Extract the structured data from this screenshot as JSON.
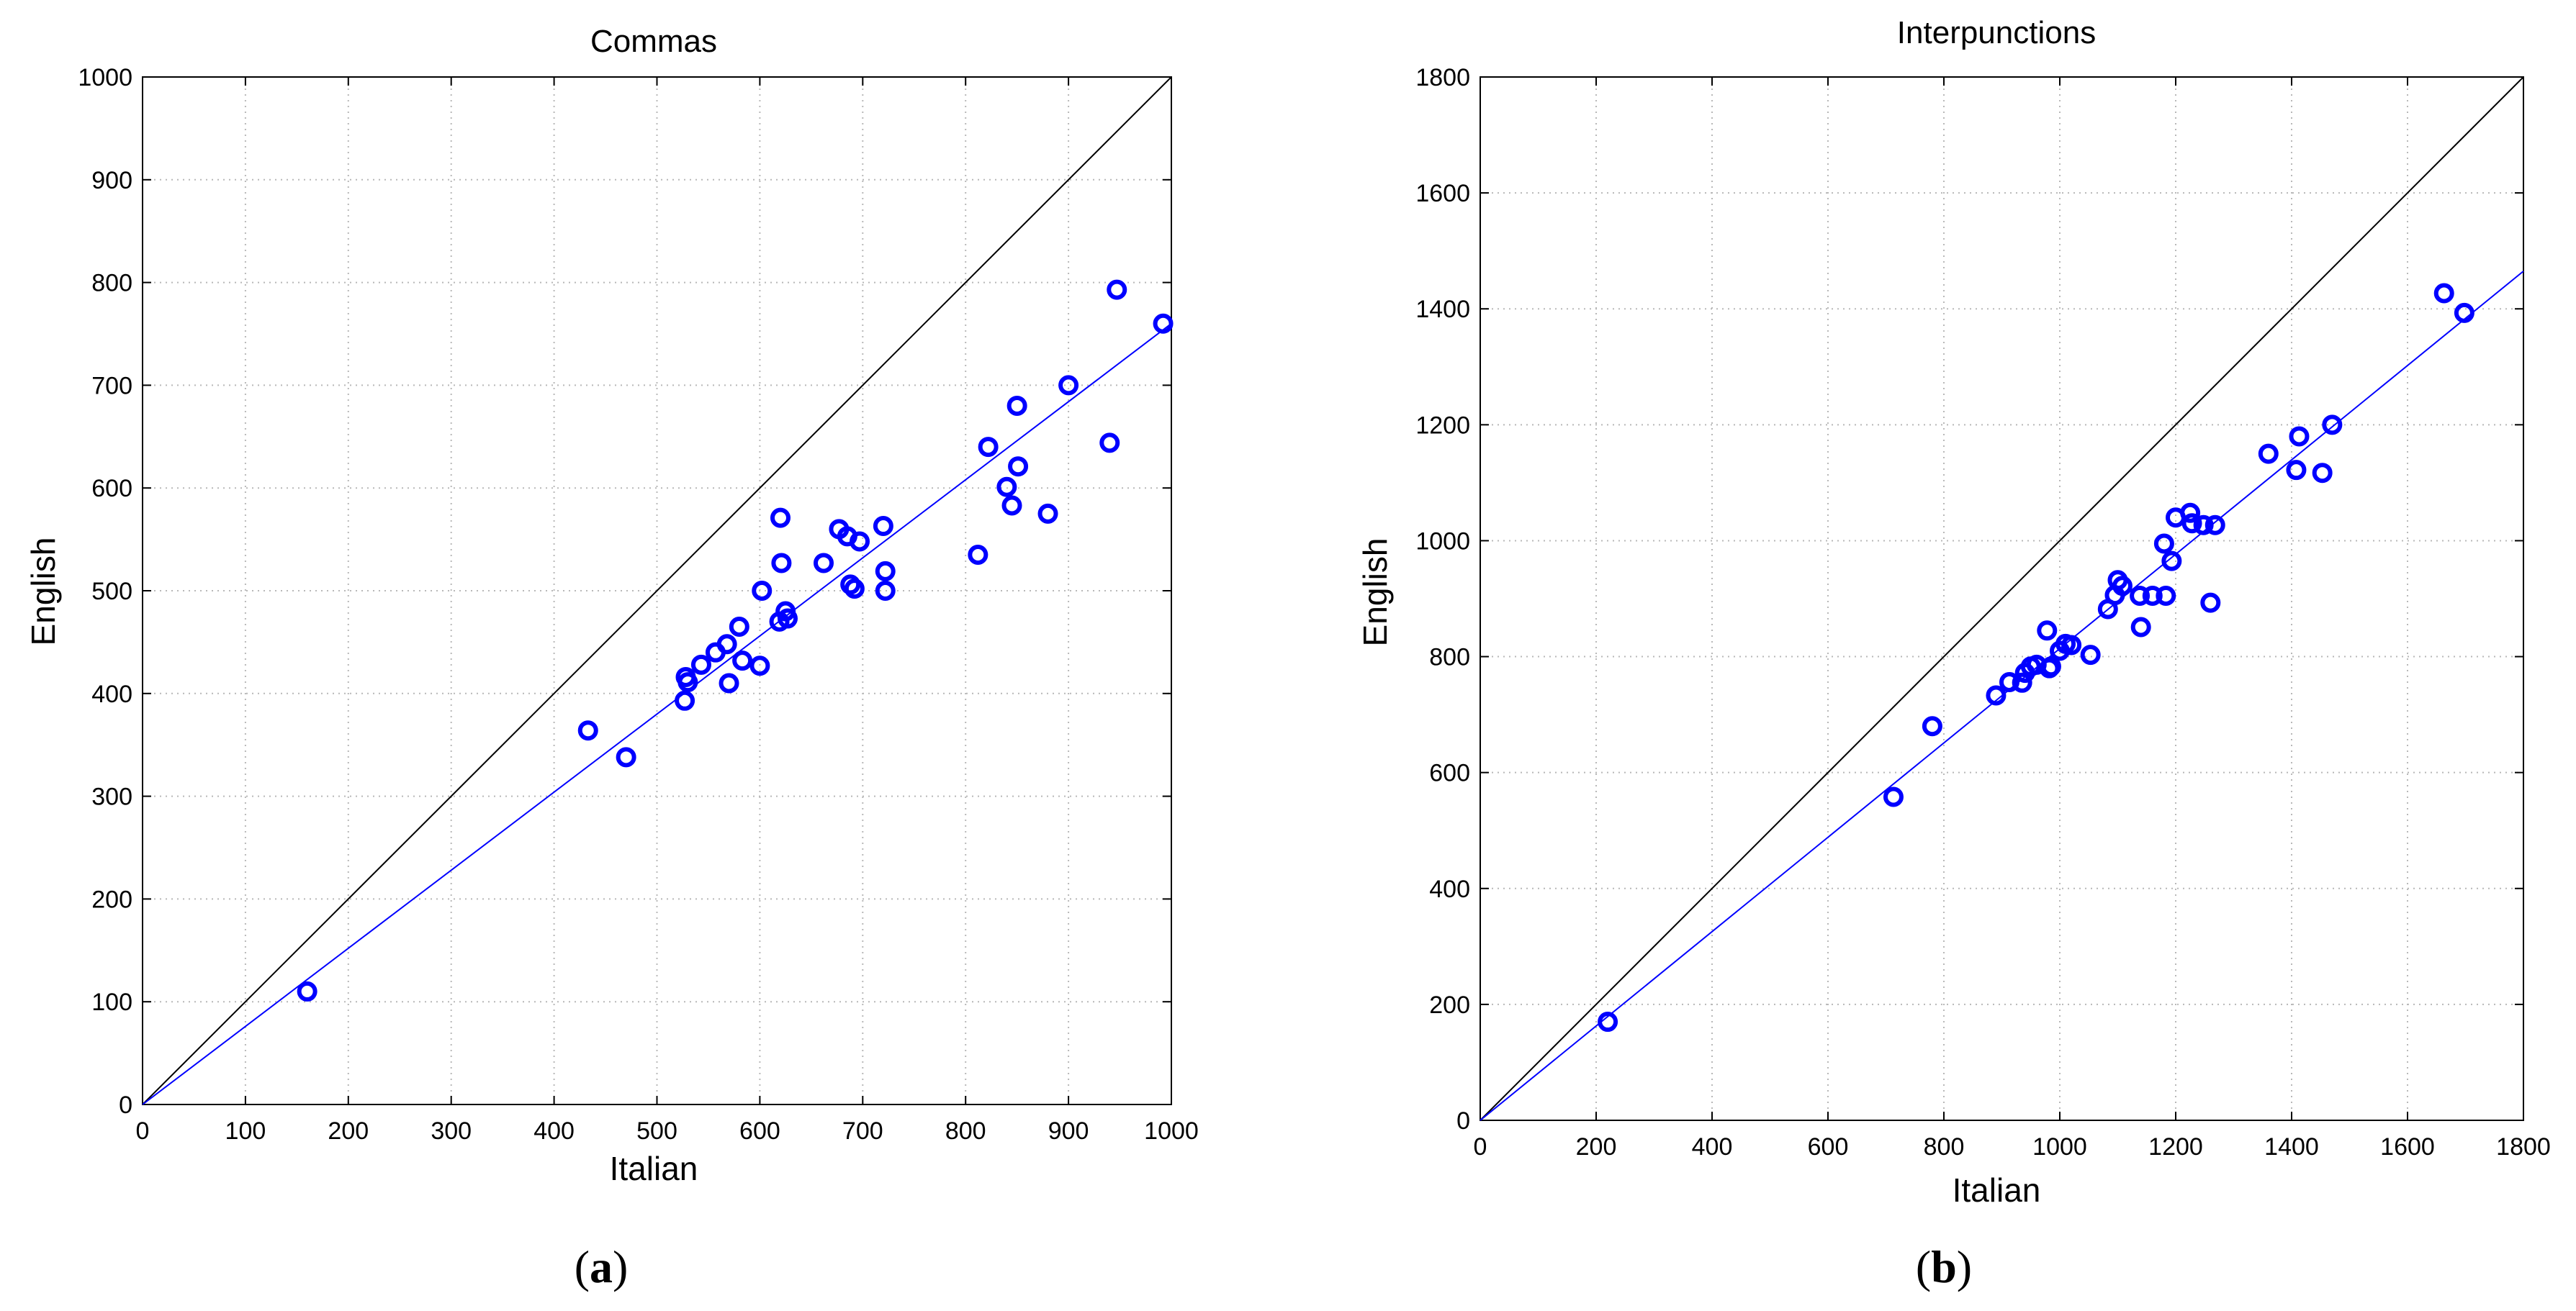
{
  "chart_data": [
    {
      "type": "scatter",
      "title": "Commas",
      "xlabel": "Italian",
      "ylabel": "English",
      "xlim": [
        0,
        1000
      ],
      "ylim": [
        0,
        1000
      ],
      "xticks": [
        0,
        100,
        200,
        300,
        400,
        500,
        600,
        700,
        800,
        900,
        1000
      ],
      "yticks": [
        0,
        100,
        200,
        300,
        400,
        500,
        600,
        700,
        800,
        900,
        1000
      ],
      "grid": true,
      "caption": [
        "(",
        "a",
        ")"
      ],
      "marker_color": "#0000ff",
      "identity_line_color": "#000000",
      "fit_line_color": "#0000ff",
      "identity_line": {
        "x": [
          0,
          1000
        ],
        "y": [
          0,
          1000
        ]
      },
      "fit_line": {
        "x": [
          0,
          1000
        ],
        "y": [
          0,
          760
        ]
      },
      "points": [
        {
          "x": 160,
          "y": 110
        },
        {
          "x": 433,
          "y": 364
        },
        {
          "x": 470,
          "y": 338
        },
        {
          "x": 527,
          "y": 393
        },
        {
          "x": 528,
          "y": 416
        },
        {
          "x": 530,
          "y": 411
        },
        {
          "x": 543,
          "y": 428
        },
        {
          "x": 557,
          "y": 440
        },
        {
          "x": 568,
          "y": 448
        },
        {
          "x": 570,
          "y": 410
        },
        {
          "x": 580,
          "y": 465
        },
        {
          "x": 583,
          "y": 432
        },
        {
          "x": 600,
          "y": 427
        },
        {
          "x": 602,
          "y": 500
        },
        {
          "x": 619,
          "y": 470
        },
        {
          "x": 620,
          "y": 571
        },
        {
          "x": 621,
          "y": 527
        },
        {
          "x": 625,
          "y": 480
        },
        {
          "x": 627,
          "y": 473
        },
        {
          "x": 662,
          "y": 527
        },
        {
          "x": 677,
          "y": 560
        },
        {
          "x": 685,
          "y": 553
        },
        {
          "x": 688,
          "y": 506
        },
        {
          "x": 692,
          "y": 502
        },
        {
          "x": 697,
          "y": 548
        },
        {
          "x": 720,
          "y": 563
        },
        {
          "x": 722,
          "y": 519
        },
        {
          "x": 722,
          "y": 500
        },
        {
          "x": 812,
          "y": 535
        },
        {
          "x": 822,
          "y": 640
        },
        {
          "x": 840,
          "y": 601
        },
        {
          "x": 845,
          "y": 583
        },
        {
          "x": 850,
          "y": 680
        },
        {
          "x": 851,
          "y": 621
        },
        {
          "x": 880,
          "y": 575
        },
        {
          "x": 900,
          "y": 700
        },
        {
          "x": 940,
          "y": 644
        },
        {
          "x": 947,
          "y": 793
        },
        {
          "x": 992,
          "y": 760
        }
      ]
    },
    {
      "type": "scatter",
      "title": "Interpunctions",
      "xlabel": "Italian",
      "ylabel": "English",
      "xlim": [
        0,
        1800
      ],
      "ylim": [
        0,
        1800
      ],
      "xticks": [
        0,
        200,
        400,
        600,
        800,
        1000,
        1200,
        1400,
        1600,
        1800
      ],
      "yticks": [
        0,
        200,
        400,
        600,
        800,
        1000,
        1200,
        1400,
        1600,
        1800
      ],
      "grid": true,
      "caption": [
        "(",
        "b",
        ")"
      ],
      "marker_color": "#0000ff",
      "identity_line_color": "#000000",
      "fit_line_color": "#0000ff",
      "identity_line": {
        "x": [
          0,
          1800
        ],
        "y": [
          0,
          1800
        ]
      },
      "fit_line": {
        "x": [
          0,
          1800
        ],
        "y": [
          0,
          1465
        ]
      },
      "points": [
        {
          "x": 220,
          "y": 170
        },
        {
          "x": 713,
          "y": 558
        },
        {
          "x": 780,
          "y": 680
        },
        {
          "x": 890,
          "y": 733
        },
        {
          "x": 913,
          "y": 756
        },
        {
          "x": 935,
          "y": 755
        },
        {
          "x": 940,
          "y": 772
        },
        {
          "x": 950,
          "y": 783
        },
        {
          "x": 960,
          "y": 786
        },
        {
          "x": 978,
          "y": 845
        },
        {
          "x": 982,
          "y": 780
        },
        {
          "x": 985,
          "y": 783
        },
        {
          "x": 1000,
          "y": 810
        },
        {
          "x": 1010,
          "y": 822
        },
        {
          "x": 1020,
          "y": 820
        },
        {
          "x": 1053,
          "y": 803
        },
        {
          "x": 1083,
          "y": 882
        },
        {
          "x": 1095,
          "y": 906
        },
        {
          "x": 1100,
          "y": 932
        },
        {
          "x": 1108,
          "y": 922
        },
        {
          "x": 1138,
          "y": 905
        },
        {
          "x": 1140,
          "y": 851
        },
        {
          "x": 1160,
          "y": 905
        },
        {
          "x": 1183,
          "y": 905
        },
        {
          "x": 1180,
          "y": 995
        },
        {
          "x": 1193,
          "y": 965
        },
        {
          "x": 1200,
          "y": 1040
        },
        {
          "x": 1225,
          "y": 1048
        },
        {
          "x": 1228,
          "y": 1030
        },
        {
          "x": 1248,
          "y": 1027
        },
        {
          "x": 1260,
          "y": 893
        },
        {
          "x": 1268,
          "y": 1027
        },
        {
          "x": 1360,
          "y": 1150
        },
        {
          "x": 1408,
          "y": 1122
        },
        {
          "x": 1413,
          "y": 1180
        },
        {
          "x": 1453,
          "y": 1117
        },
        {
          "x": 1470,
          "y": 1200
        },
        {
          "x": 1663,
          "y": 1427
        },
        {
          "x": 1698,
          "y": 1393
        }
      ]
    }
  ]
}
